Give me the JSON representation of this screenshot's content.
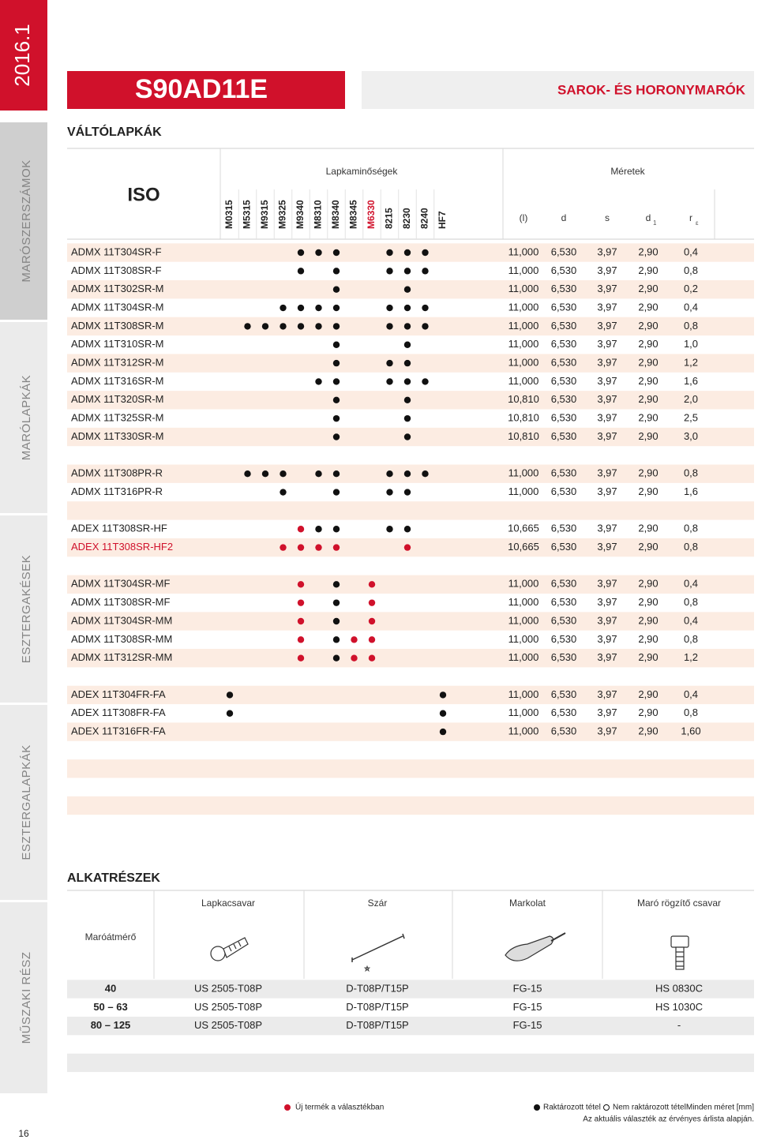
{
  "sidebar": {
    "edition": "2016.1",
    "sections": [
      "MARÓSZERSZÁMOK",
      "MARÓLAPKÁK",
      "ESZTERGAKÉSEK",
      "ESZTERGALAPKÁK",
      "MŰSZAKI RÉSZ"
    ],
    "page_number": "16"
  },
  "header": {
    "product": "S90AD11E",
    "category": "SAROK- ÉS HORONYMARÓK"
  },
  "inserts": {
    "title": "VÁLTÓLAPKÁK",
    "iso_header": "ISO",
    "grades_header": "Lapkaminőségek",
    "dims_header": "Méretek",
    "grades": [
      {
        "name": "M0315",
        "color": "#222222"
      },
      {
        "name": "M5315",
        "color": "#222222"
      },
      {
        "name": "M9315",
        "color": "#222222"
      },
      {
        "name": "M9325",
        "color": "#222222"
      },
      {
        "name": "M9340",
        "color": "#222222"
      },
      {
        "name": "M8310",
        "color": "#222222"
      },
      {
        "name": "M8340",
        "color": "#222222"
      },
      {
        "name": "M8345",
        "color": "#222222"
      },
      {
        "name": "M6330",
        "color": "#d0112b"
      },
      {
        "name": "8215",
        "color": "#222222"
      },
      {
        "name": "8230",
        "color": "#222222"
      },
      {
        "name": "8240",
        "color": "#222222"
      },
      {
        "name": "HF7",
        "color": "#222222"
      }
    ],
    "dims": [
      {
        "label": "(l)"
      },
      {
        "label": "d"
      },
      {
        "label": "s"
      },
      {
        "label": "d",
        "sub": "1"
      },
      {
        "label": "r",
        "sub": "ε"
      }
    ],
    "groups": [
      [
        {
          "iso": "ADMX 11T304SR-F",
          "grades": [
            0,
            0,
            0,
            0,
            1,
            1,
            1,
            0,
            0,
            1,
            1,
            1,
            0
          ],
          "dims": [
            "11,000",
            "6,530",
            "3,97",
            "2,90",
            "0,4"
          ]
        },
        {
          "iso": "ADMX 11T308SR-F",
          "grades": [
            0,
            0,
            0,
            0,
            1,
            0,
            1,
            0,
            0,
            1,
            1,
            1,
            0
          ],
          "dims": [
            "11,000",
            "6,530",
            "3,97",
            "2,90",
            "0,8"
          ]
        },
        {
          "iso": "ADMX 11T302SR-M",
          "grades": [
            0,
            0,
            0,
            0,
            0,
            0,
            1,
            0,
            0,
            0,
            1,
            0,
            0
          ],
          "dims": [
            "11,000",
            "6,530",
            "3,97",
            "2,90",
            "0,2"
          ]
        },
        {
          "iso": "ADMX 11T304SR-M",
          "grades": [
            0,
            0,
            0,
            1,
            1,
            1,
            1,
            0,
            0,
            1,
            1,
            1,
            0
          ],
          "dims": [
            "11,000",
            "6,530",
            "3,97",
            "2,90",
            "0,4"
          ]
        },
        {
          "iso": "ADMX 11T308SR-M",
          "grades": [
            0,
            1,
            1,
            1,
            1,
            1,
            1,
            0,
            0,
            1,
            1,
            1,
            0
          ],
          "dims": [
            "11,000",
            "6,530",
            "3,97",
            "2,90",
            "0,8"
          ]
        },
        {
          "iso": "ADMX 11T310SR-M",
          "grades": [
            0,
            0,
            0,
            0,
            0,
            0,
            1,
            0,
            0,
            0,
            1,
            0,
            0
          ],
          "dims": [
            "11,000",
            "6,530",
            "3,97",
            "2,90",
            "1,0"
          ]
        },
        {
          "iso": "ADMX 11T312SR-M",
          "grades": [
            0,
            0,
            0,
            0,
            0,
            0,
            1,
            0,
            0,
            1,
            1,
            0,
            0
          ],
          "dims": [
            "11,000",
            "6,530",
            "3,97",
            "2,90",
            "1,2"
          ]
        },
        {
          "iso": "ADMX 11T316SR-M",
          "grades": [
            0,
            0,
            0,
            0,
            0,
            1,
            1,
            0,
            0,
            1,
            1,
            1,
            0
          ],
          "dims": [
            "11,000",
            "6,530",
            "3,97",
            "2,90",
            "1,6"
          ]
        },
        {
          "iso": "ADMX 11T320SR-M",
          "grades": [
            0,
            0,
            0,
            0,
            0,
            0,
            1,
            0,
            0,
            0,
            1,
            0,
            0
          ],
          "dims": [
            "10,810",
            "6,530",
            "3,97",
            "2,90",
            "2,0"
          ]
        },
        {
          "iso": "ADMX 11T325SR-M",
          "grades": [
            0,
            0,
            0,
            0,
            0,
            0,
            1,
            0,
            0,
            0,
            1,
            0,
            0
          ],
          "dims": [
            "10,810",
            "6,530",
            "3,97",
            "2,90",
            "2,5"
          ]
        },
        {
          "iso": "ADMX 11T330SR-M",
          "grades": [
            0,
            0,
            0,
            0,
            0,
            0,
            1,
            0,
            0,
            0,
            1,
            0,
            0
          ],
          "dims": [
            "10,810",
            "6,530",
            "3,97",
            "2,90",
            "3,0"
          ]
        }
      ],
      [
        {
          "iso": "ADMX 11T308PR-R",
          "grades": [
            0,
            1,
            1,
            1,
            0,
            1,
            1,
            0,
            0,
            1,
            1,
            1,
            0
          ],
          "dims": [
            "11,000",
            "6,530",
            "3,97",
            "2,90",
            "0,8"
          ]
        },
        {
          "iso": "ADMX 11T316PR-R",
          "grades": [
            0,
            0,
            0,
            1,
            0,
            0,
            1,
            0,
            0,
            1,
            1,
            0,
            0
          ],
          "dims": [
            "11,000",
            "6,530",
            "3,97",
            "2,90",
            "1,6"
          ]
        }
      ],
      [
        {
          "iso": "ADEX 11T308SR-HF",
          "grades": [
            0,
            0,
            0,
            0,
            2,
            1,
            1,
            0,
            0,
            1,
            1,
            0,
            0
          ],
          "dims": [
            "10,665",
            "6,530",
            "3,97",
            "2,90",
            "0,8"
          ]
        },
        {
          "iso": "ADEX 11T308SR-HF2",
          "color": "#d0112b",
          "grades": [
            0,
            0,
            0,
            2,
            2,
            2,
            2,
            0,
            0,
            0,
            2,
            0,
            0
          ],
          "dims": [
            "10,665",
            "6,530",
            "3,97",
            "2,90",
            "0,8"
          ]
        }
      ],
      [
        {
          "iso": "ADMX 11T304SR-MF",
          "grades": [
            0,
            0,
            0,
            0,
            2,
            0,
            1,
            0,
            2,
            0,
            0,
            0,
            0
          ],
          "dims": [
            "11,000",
            "6,530",
            "3,97",
            "2,90",
            "0,4"
          ]
        },
        {
          "iso": "ADMX 11T308SR-MF",
          "grades": [
            0,
            0,
            0,
            0,
            2,
            0,
            1,
            0,
            2,
            0,
            0,
            0,
            0
          ],
          "dims": [
            "11,000",
            "6,530",
            "3,97",
            "2,90",
            "0,8"
          ]
        },
        {
          "iso": "ADMX 11T304SR-MM",
          "grades": [
            0,
            0,
            0,
            0,
            2,
            0,
            1,
            0,
            2,
            0,
            0,
            0,
            0
          ],
          "dims": [
            "11,000",
            "6,530",
            "3,97",
            "2,90",
            "0,4"
          ]
        },
        {
          "iso": "ADMX 11T308SR-MM",
          "grades": [
            0,
            0,
            0,
            0,
            2,
            0,
            1,
            2,
            2,
            0,
            0,
            0,
            0
          ],
          "dims": [
            "11,000",
            "6,530",
            "3,97",
            "2,90",
            "0,8"
          ]
        },
        {
          "iso": "ADMX 11T312SR-MM",
          "grades": [
            0,
            0,
            0,
            0,
            2,
            0,
            1,
            2,
            2,
            0,
            0,
            0,
            0
          ],
          "dims": [
            "11,000",
            "6,530",
            "3,97",
            "2,90",
            "1,2"
          ]
        }
      ],
      [
        {
          "iso": "ADEX 11T304FR-FA",
          "grades": [
            1,
            0,
            0,
            0,
            0,
            0,
            0,
            0,
            0,
            0,
            0,
            0,
            1
          ],
          "dims": [
            "11,000",
            "6,530",
            "3,97",
            "2,90",
            "0,4"
          ]
        },
        {
          "iso": "ADEX 11T308FR-FA",
          "grades": [
            1,
            0,
            0,
            0,
            0,
            0,
            0,
            0,
            0,
            0,
            0,
            0,
            1
          ],
          "dims": [
            "11,000",
            "6,530",
            "3,97",
            "2,90",
            "0,8"
          ]
        },
        {
          "iso": "ADEX 11T316FR-FA",
          "grades": [
            0,
            0,
            0,
            0,
            0,
            0,
            0,
            0,
            0,
            0,
            0,
            0,
            1
          ],
          "dims": [
            "11,000",
            "6,530",
            "3,97",
            "2,90",
            "1,60"
          ]
        }
      ]
    ]
  },
  "parts": {
    "title": "ALKATRÉSZEK",
    "diameter_header": "Maróátmérő",
    "columns": [
      "Lapkacsavar",
      "Szár",
      "Markolat",
      "Maró rögzítő csavar"
    ],
    "rows": [
      {
        "diameter": "40",
        "items": [
          "US 2505-T08P",
          "D-T08P/T15P",
          "FG-15",
          "HS 0830C"
        ]
      },
      {
        "diameter": "50 – 63",
        "items": [
          "US 2505-T08P",
          "D-T08P/T15P",
          "FG-15",
          "HS 1030C"
        ]
      },
      {
        "diameter": "80 – 125",
        "items": [
          "US 2505-T08P",
          "D-T08P/T15P",
          "FG-15",
          "-"
        ]
      }
    ]
  },
  "footer": {
    "new": "Új termék a választékban",
    "stock": "Raktározott tétel",
    "nonstock": "Nem raktározott tétel",
    "units": "Minden méret [mm]",
    "note": "Az aktuális választék az érvényes árlista alapján."
  }
}
